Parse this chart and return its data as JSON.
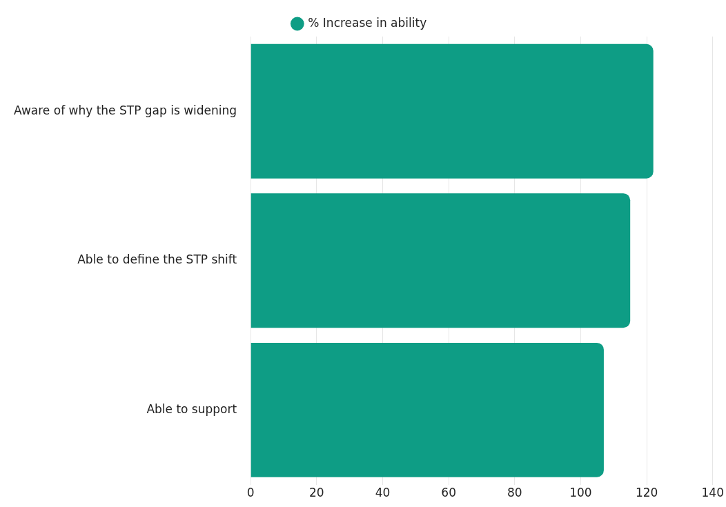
{
  "chart_data": {
    "type": "bar",
    "orientation": "horizontal",
    "categories": [
      "Aware of why the STP gap is widening",
      "Able to define the STP shift",
      "Able to support"
    ],
    "series": [
      {
        "name": "% Increase in ability",
        "color": "#0e9d85",
        "values": [
          122,
          115,
          107
        ]
      }
    ],
    "xlim": [
      0,
      140
    ],
    "xticks": [
      0,
      20,
      40,
      60,
      80,
      100,
      120,
      140
    ],
    "grid": "x",
    "legend": "top"
  }
}
